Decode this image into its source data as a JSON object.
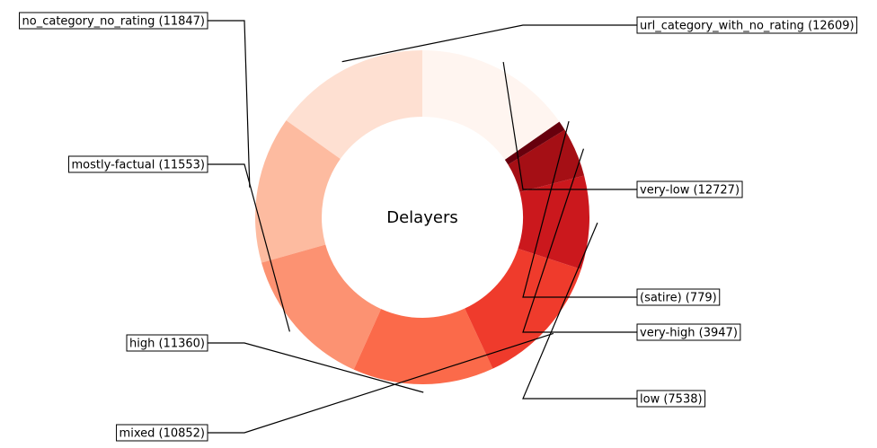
{
  "chart_data": {
    "type": "pie",
    "style": "donut",
    "center_label": "Delayers",
    "categories": [
      "url_category_with_no_rating",
      "no_category_no_rating",
      "mostly-factual",
      "high",
      "mixed",
      "low",
      "very-high",
      "(satire)",
      "very-low"
    ],
    "values": [
      12609,
      11847,
      11553,
      11360,
      10852,
      7538,
      3947,
      779,
      12727
    ],
    "labels": [
      "url_category_with_no_rating (12609)",
      "no_category_no_rating (11847)",
      "mostly-factual (11553)",
      "high (11360)",
      "mixed (10852)",
      "low (7538)",
      "very-high (3947)",
      "(satire) (779)",
      "very-low (12727)"
    ],
    "colors": [
      "#fee0d2",
      "#fdbba0",
      "#fc9272",
      "#fb6a4a",
      "#ef3b2c",
      "#cb181d",
      "#a50f15",
      "#67000d",
      "#fff5f0"
    ],
    "start_angle_deg": 90,
    "direction": "counterclockwise"
  }
}
